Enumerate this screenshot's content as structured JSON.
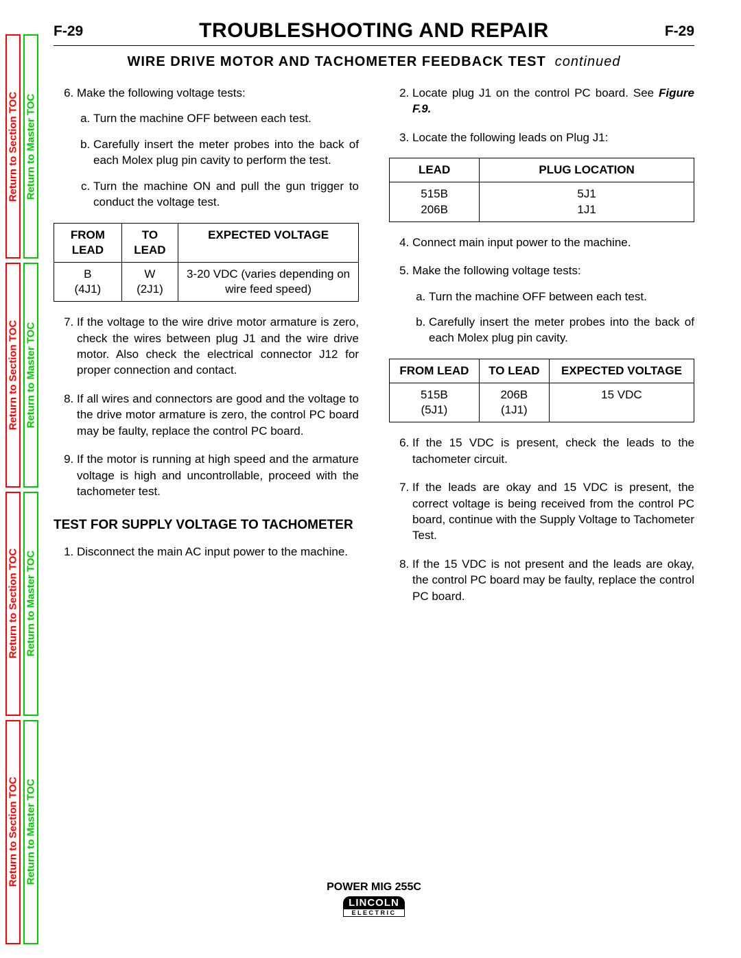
{
  "colors": {
    "section_toc": "#ff0000",
    "master_toc": "#00cc00",
    "text": "#000000",
    "background": "#ffffff"
  },
  "sidebar": {
    "section_label": "Return to Section TOC",
    "master_label": "Return to Master TOC",
    "segments": 4
  },
  "header": {
    "page_number": "F-29",
    "title": "TROUBLESHOOTING AND REPAIR"
  },
  "subtitle": {
    "main": "WIRE DRIVE MOTOR AND TACHOMETER FEEDBACK TEST",
    "continued": "continued"
  },
  "col1": {
    "item6": {
      "intro": "Make the following voltage tests:",
      "a": "Turn the machine OFF between each test.",
      "b": "Carefully insert the meter probes into the back of each Molex plug pin cavity to perform the test.",
      "c": "Turn the machine ON and pull the gun trigger to conduct the voltage test."
    },
    "table1": {
      "headers": {
        "from": "FROM LEAD",
        "to": "TO LEAD",
        "exp": "EXPECTED VOLTAGE"
      },
      "row": {
        "from1": "B",
        "from2": "(4J1)",
        "to1": "W",
        "to2": "(2J1)",
        "exp": "3-20 VDC (varies depending on wire feed speed)"
      }
    },
    "item7": "If the voltage to the wire drive motor armature is zero, check the wires between plug J1 and the wire drive motor. Also check the electrical connector J12 for proper connection and contact.",
    "item8": "If all wires and connectors are good and the voltage to the drive motor armature is zero, the control PC board may be faulty, replace the control PC board.",
    "item9": "If the motor is running at high speed and the armature voltage is high and uncontrollable, proceed with the tachometer test.",
    "section_heading": "TEST FOR SUPPLY VOLTAGE TO TACHOMETER",
    "supply": {
      "item1": "Disconnect the main AC input power to the machine."
    }
  },
  "col2": {
    "item2a": "Locate plug J1 on the control PC board. See ",
    "item2b": "Figure F.9.",
    "item3": "Locate the following leads on Plug J1:",
    "plug_table": {
      "headers": {
        "lead": "LEAD",
        "loc": "PLUG LOCATION"
      },
      "rows": [
        {
          "lead": "515B",
          "loc": "5J1"
        },
        {
          "lead": "206B",
          "loc": "1J1"
        }
      ]
    },
    "item4": "Connect main input power to the machine.",
    "item5": {
      "intro": "Make the following voltage tests:",
      "a": "Turn the machine OFF between each test.",
      "b": "Carefully insert the meter probes into the back of each Molex plug pin cavity."
    },
    "table2": {
      "headers": {
        "from": "FROM LEAD",
        "to": "TO LEAD",
        "exp": "EXPECTED VOLTAGE"
      },
      "row": {
        "from1": "515B",
        "from2": "(5J1)",
        "to1": "206B",
        "to2": "(1J1)",
        "exp": "15 VDC"
      }
    },
    "item6": "If the 15 VDC is present, check the leads to the tachometer circuit.",
    "item7": "If the leads are okay and 15 VDC is present, the correct voltage is being received from the control PC board, continue with the Supply Voltage to Tachometer Test.",
    "item8": "If the 15 VDC is not present and the leads are okay, the control PC board may be faulty, replace the control PC board."
  },
  "footer": {
    "model": "POWER MIG 255C",
    "logo_top": "LINCOLN",
    "logo_bot": "ELECTRIC"
  }
}
